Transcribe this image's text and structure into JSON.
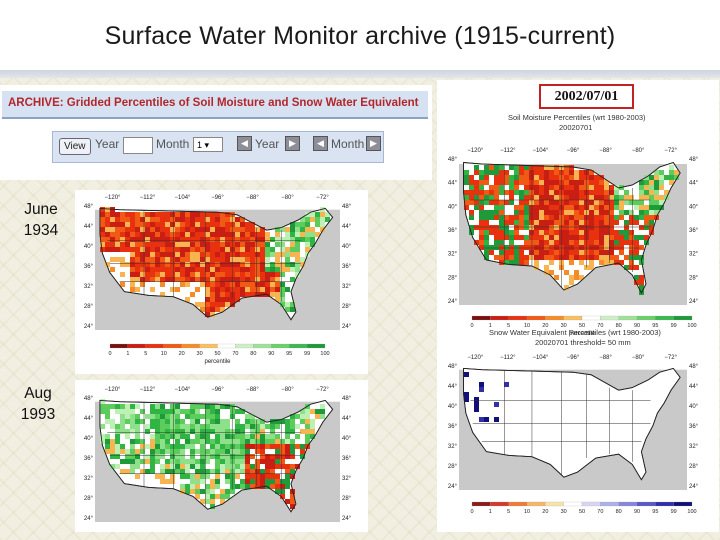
{
  "slide": {
    "title": "Surface Water Monitor archive (1915-current)"
  },
  "archive": {
    "header": "ARCHIVE: Gridded Percentiles of Soil Moisture and Snow Water Equivalent",
    "view_button": "View",
    "year_label": "Year",
    "month_label": "Month",
    "month_value": "1",
    "prev_year_label": "Year",
    "next_month_label": "Month"
  },
  "labels": {
    "june_1934": [
      "June",
      "1934"
    ],
    "aug_1993": [
      "Aug",
      "1993"
    ]
  },
  "current": {
    "date": "2002/07/01",
    "soil_title": "Soil Moisture Percentiles (wrt 1980-2003)",
    "soil_date": "20020701",
    "swe_title": "Snow Water Equivalent Percentiles (wrt 1980-2003)",
    "swe_subtitle": "20020701   threshold= 50 mm"
  },
  "map_axes": {
    "lon_ticks": [
      "−120°",
      "−112°",
      "−104°",
      "−96°",
      "−88°",
      "−80°",
      "−72°"
    ],
    "lat_ticks": [
      "48°",
      "44°",
      "40°",
      "36°",
      "32°",
      "28°",
      "24°"
    ],
    "legend_values": [
      "0",
      "1",
      "5",
      "10",
      "20",
      "30",
      "50",
      "70",
      "80",
      "90",
      "95",
      "99",
      "100"
    ],
    "legend_label": "percentile"
  },
  "palettes": {
    "dry": [
      "#6e1010",
      "#c81e14",
      "#e8320f",
      "#f05a14",
      "#f58c28",
      "#f8b450"
    ],
    "wet": [
      "#bdf0b4",
      "#8ee08a",
      "#5ccc5c",
      "#30b444",
      "#1e9a3a"
    ],
    "legend": [
      "#7a0f0f",
      "#c81e14",
      "#e8320f",
      "#f05a14",
      "#f58c28",
      "#f8c060",
      "#ffffff",
      "#cdeec6",
      "#9ee29a",
      "#6cd06a",
      "#3cb84e",
      "#1e9a3a"
    ],
    "swe_legend": [
      "#8a1c1c",
      "#d33a2a",
      "#f07a3c",
      "#f7b46a",
      "#f6e3a6",
      "#ffffff",
      "#d9d6f2",
      "#aeb0ea",
      "#8686dc",
      "#5858c8",
      "#3030a8",
      "#101078"
    ],
    "water": "#c9c9c9"
  }
}
